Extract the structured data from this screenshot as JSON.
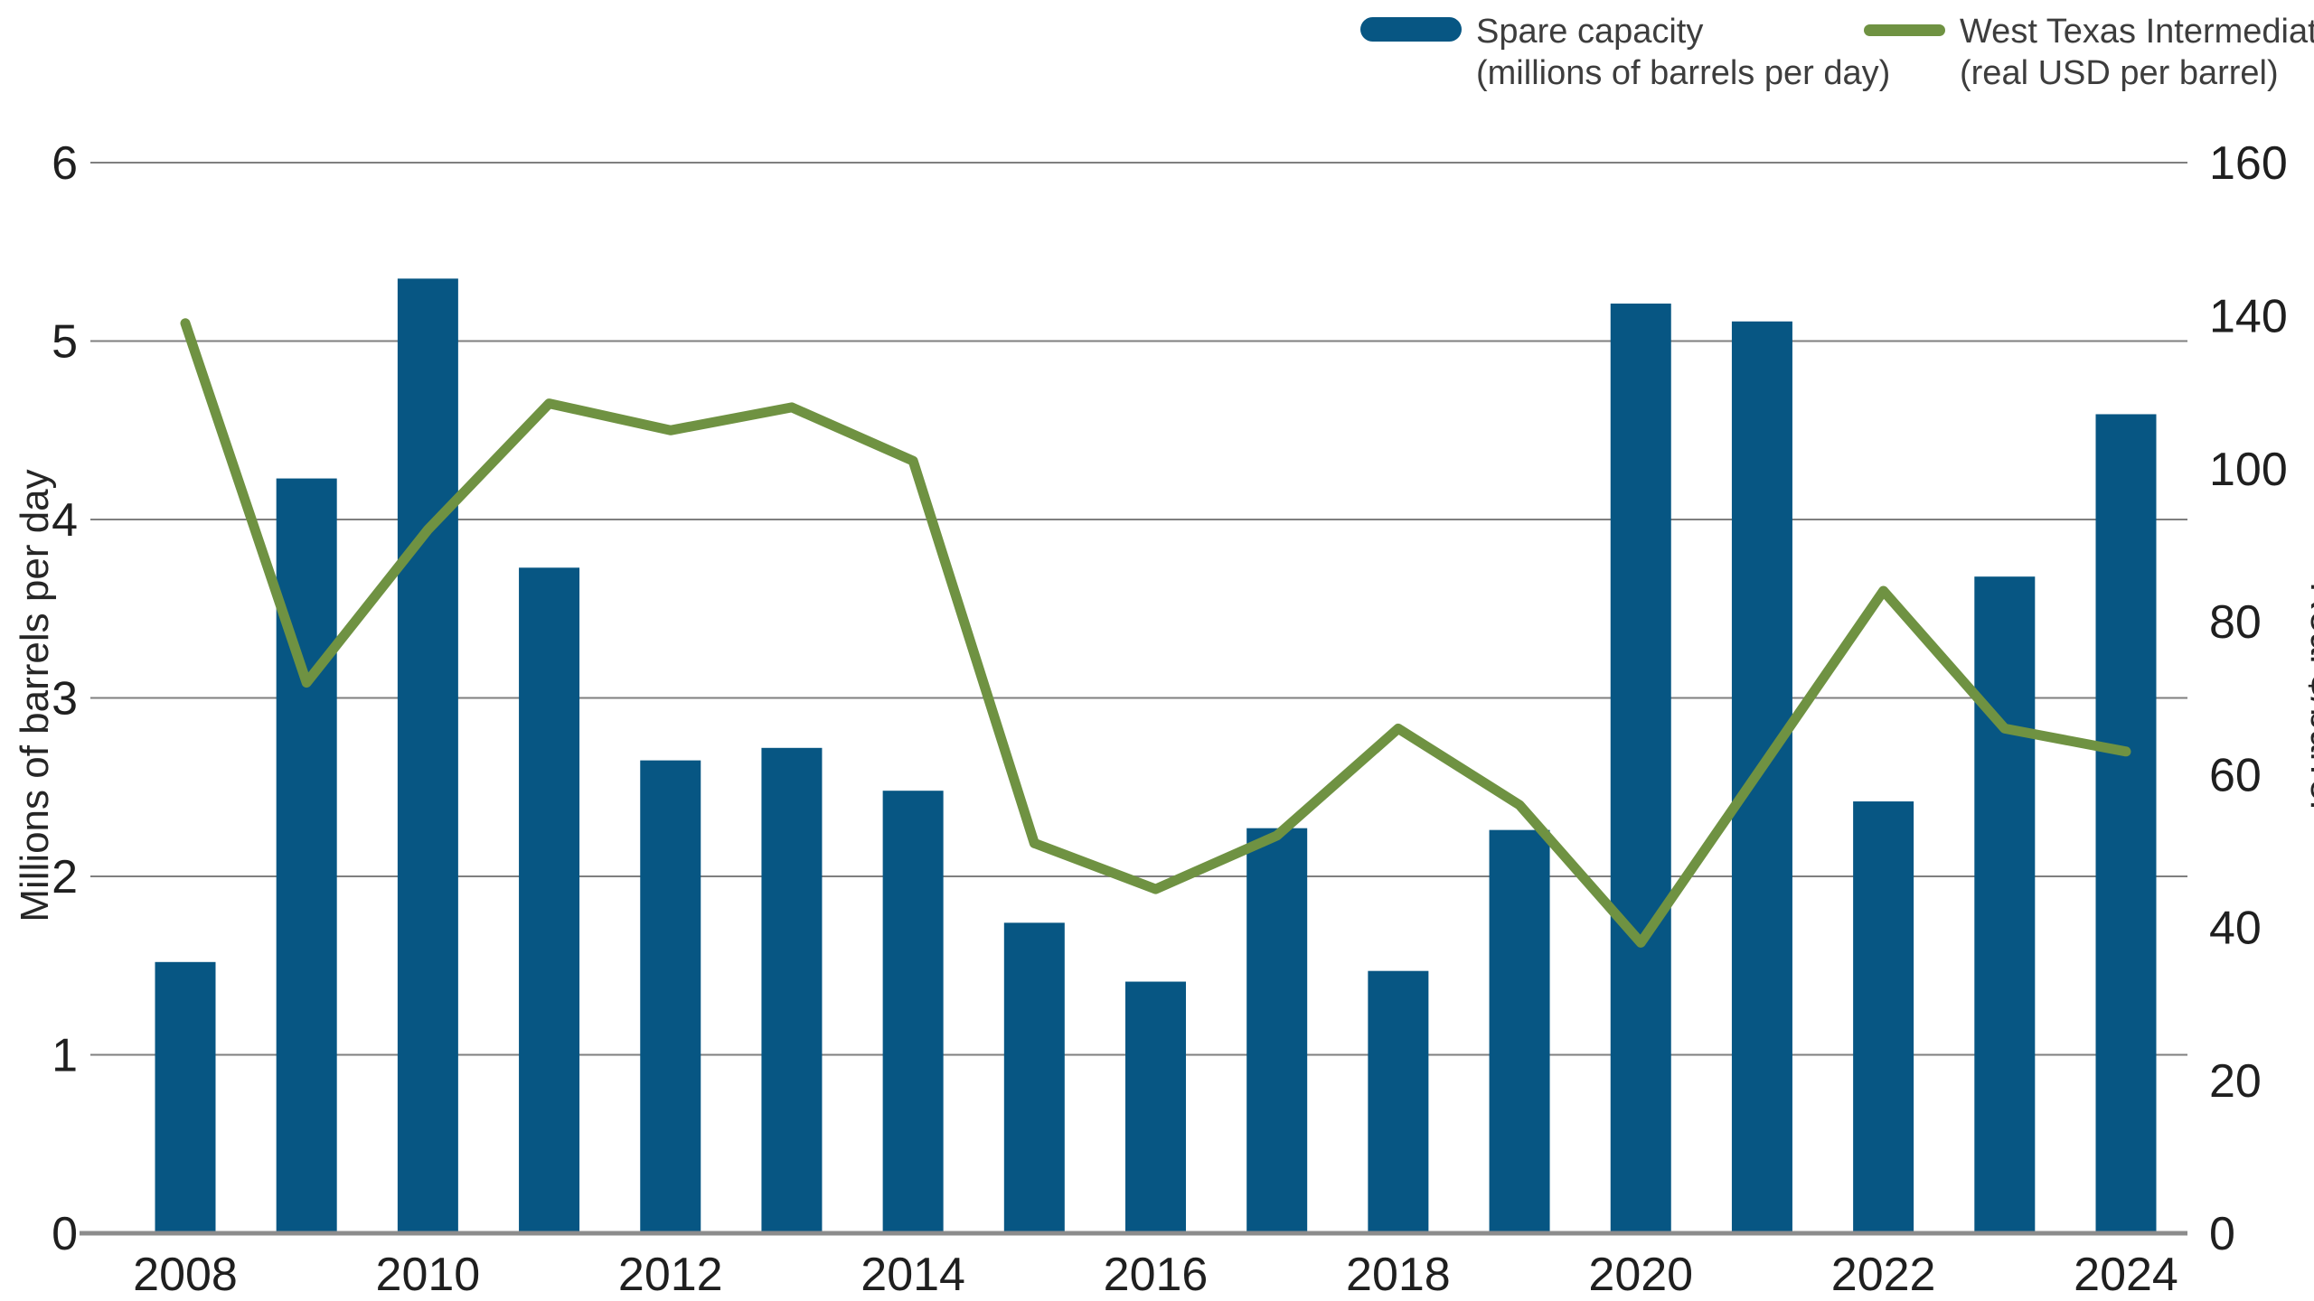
{
  "legend": {
    "bar_series": {
      "label_line1": "Spare capacity",
      "label_line2": "(millions of barrels per day)"
    },
    "line_series": {
      "label_line1": "West Texas Intermediate",
      "label_line2": "(real USD per barrel)"
    }
  },
  "left_axis": {
    "title": "Millions of barrels per day",
    "tick_labels": [
      "6",
      "5",
      "4",
      "3",
      "2",
      "1",
      "0"
    ]
  },
  "right_axis": {
    "title": "Real $/barrel",
    "tick_labels": [
      "160",
      "140",
      "100",
      "80",
      "60",
      "40",
      "20",
      "0"
    ]
  },
  "x_axis": {
    "tick_labels": [
      "2008",
      "2010",
      "2012",
      "2014",
      "2016",
      "2018",
      "2020",
      "2022",
      "2024"
    ]
  },
  "colors": {
    "bar": "#075683",
    "line": "#6F9242",
    "gridline": "#7f7f7f",
    "axis_line": "#8c8c8c",
    "tick_text": "#1f1f1f"
  },
  "chart_data": {
    "type": "combo-bar-line",
    "categories": [
      2008,
      2009,
      2010,
      2011,
      2012,
      2013,
      2014,
      2015,
      2016,
      2017,
      2018,
      2019,
      2020,
      2021,
      2022,
      2023,
      2024
    ],
    "series": [
      {
        "name": "Spare capacity (millions of barrels per day)",
        "type": "bar",
        "axis": "left",
        "color": "#075683",
        "values": [
          1.52,
          4.23,
          5.35,
          3.73,
          2.65,
          2.72,
          2.48,
          1.74,
          1.41,
          2.27,
          1.47,
          2.26,
          5.21,
          5.11,
          2.42,
          3.68,
          4.59
        ]
      },
      {
        "name": "West Texas Intermediate (real USD per barrel)",
        "type": "line",
        "axis": "right",
        "color": "#6F9242",
        "values": [
          138,
          72,
          92,
          117,
          110,
          116,
          102,
          51,
          45,
          52,
          66,
          56,
          38,
          61,
          84,
          66,
          63
        ]
      }
    ],
    "left_axis": {
      "label": "Millions of barrels per day",
      "range": [
        0,
        6
      ],
      "tick_step": 1
    },
    "right_axis": {
      "label": "Real $/barrel",
      "tick_values_as_printed": [
        0,
        20,
        40,
        60,
        80,
        100,
        140,
        160
      ],
      "ticks_equally_spaced": true
    },
    "x_labels_shown": [
      2008,
      2010,
      2012,
      2014,
      2016,
      2018,
      2020,
      2022,
      2024
    ],
    "grid": "horizontal",
    "legend_position": "top-right",
    "title": ""
  }
}
